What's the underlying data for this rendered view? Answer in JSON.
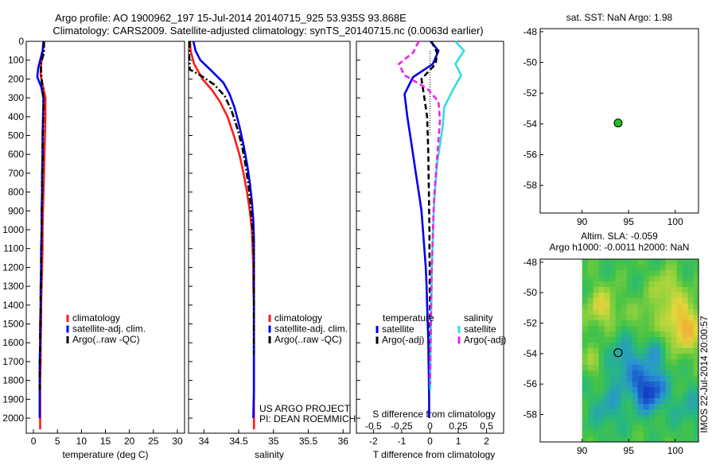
{
  "header": {
    "line1": "Argo profile: AO 1900962_197 15-Jul-2014 20140715_925 53.935S 93.868E",
    "line2": "Climatology: CARS2009. Satellite-adjusted climatology: synTS_20140715.nc (0.0063d earlier)"
  },
  "colors": {
    "climatology": "#ff1a1a",
    "satellite": "#0000ee",
    "argo": "#000000",
    "sal_satellite": "#33dddd",
    "sal_argo": "#ee22ee",
    "marker_fill": "#22bb22"
  },
  "chart_data": [
    {
      "id": "temperature",
      "type": "line",
      "xlabel": "temperature (deg C)",
      "ylabel": "",
      "xlim": [
        -1.5,
        31.5
      ],
      "ylim": [
        2080,
        0
      ],
      "xticks": [
        0,
        5,
        10,
        15,
        20,
        25,
        30
      ],
      "yticks": [
        0,
        100,
        200,
        300,
        400,
        500,
        600,
        700,
        800,
        900,
        1000,
        1100,
        1200,
        1300,
        1400,
        1500,
        1600,
        1700,
        1800,
        1900,
        2000
      ],
      "legend": [
        "climatology",
        "satellite-adj. clim.",
        "Argo(..raw -QC)"
      ],
      "series": [
        {
          "name": "climatology",
          "style": "solid",
          "x": [
            2.1,
            2.0,
            1.6,
            1.5,
            2.0,
            2.5,
            2.5,
            2.4,
            2.3,
            2.2,
            2.1,
            2.0,
            1.9,
            1.9,
            1.8,
            1.7,
            1.6,
            1.6,
            1.5,
            1.5,
            1.4,
            1.4
          ],
          "y": [
            0,
            50,
            120,
            180,
            240,
            300,
            400,
            500,
            600,
            700,
            800,
            900,
            1000,
            1100,
            1200,
            1300,
            1400,
            1500,
            1600,
            1700,
            1800,
            2060
          ]
        },
        {
          "name": "satellite-adj. clim.",
          "style": "solid",
          "x": [
            2.1,
            1.9,
            1.0,
            0.8,
            1.6,
            2.1,
            2.0,
            1.9,
            1.9,
            1.8,
            1.8,
            1.7,
            1.7,
            1.6,
            1.6,
            1.5,
            1.5,
            1.4,
            1.4,
            1.3,
            1.3,
            1.3
          ],
          "y": [
            0,
            50,
            140,
            190,
            240,
            300,
            400,
            500,
            600,
            700,
            800,
            900,
            1000,
            1100,
            1200,
            1300,
            1400,
            1500,
            1600,
            1700,
            1800,
            2000
          ]
        },
        {
          "name": "Argo(..raw -QC)",
          "style": "dashdot",
          "x": [
            2.2,
            2.2,
            1.5,
            1.7,
            2.0,
            2.1,
            2.0,
            1.9,
            1.9,
            1.8,
            1.8,
            1.7,
            1.7,
            1.6,
            1.6,
            1.5,
            1.5,
            1.4,
            1.4,
            1.3,
            1.3
          ],
          "y": [
            0,
            60,
            120,
            200,
            280,
            350,
            450,
            550,
            650,
            750,
            850,
            950,
            1050,
            1150,
            1250,
            1350,
            1450,
            1550,
            1650,
            1750,
            1850
          ]
        }
      ]
    },
    {
      "id": "salinity",
      "type": "line",
      "xlabel": "salinity",
      "xlim": [
        33.78,
        36.1
      ],
      "ylim": [
        2080,
        0
      ],
      "xticks": [
        34,
        34.5,
        35,
        35.5,
        36
      ],
      "legend": [
        "climatology",
        "satellite-adj. clim.",
        "Argo(..raw -QC)"
      ],
      "series": [
        {
          "name": "climatology",
          "style": "solid",
          "x": [
            33.8,
            33.81,
            33.86,
            33.98,
            34.12,
            34.23,
            34.34,
            34.43,
            34.51,
            34.57,
            34.62,
            34.66,
            34.69,
            34.7,
            34.71,
            34.71,
            34.72,
            34.72,
            34.72,
            34.72,
            34.72,
            34.72,
            34.72
          ],
          "y": [
            0,
            50,
            120,
            200,
            260,
            320,
            400,
            500,
            600,
            700,
            800,
            900,
            1000,
            1100,
            1200,
            1300,
            1400,
            1500,
            1600,
            1700,
            1800,
            1900,
            2060
          ]
        },
        {
          "name": "satellite-adj. clim.",
          "style": "solid",
          "x": [
            33.85,
            33.88,
            33.95,
            34.12,
            34.28,
            34.37,
            34.44,
            34.51,
            34.57,
            34.62,
            34.66,
            34.69,
            34.71,
            34.72,
            34.72,
            34.72,
            34.72,
            34.72,
            34.72,
            34.72,
            34.72,
            34.72,
            34.71
          ],
          "y": [
            0,
            50,
            100,
            160,
            220,
            280,
            350,
            450,
            550,
            650,
            750,
            850,
            950,
            1050,
            1150,
            1250,
            1350,
            1450,
            1550,
            1650,
            1750,
            1850,
            2000
          ]
        },
        {
          "name": "Argo(..raw -QC)",
          "style": "dashdot",
          "x": [
            33.8,
            33.79,
            33.8,
            33.95,
            34.15,
            34.3,
            34.4,
            34.48,
            34.55,
            34.6,
            34.64,
            34.67,
            34.69,
            34.71,
            34.72,
            34.72,
            34.72,
            34.72,
            34.72,
            34.72
          ],
          "y": [
            0,
            80,
            150,
            180,
            230,
            290,
            370,
            460,
            560,
            660,
            760,
            860,
            960,
            1060,
            1160,
            1260,
            1360,
            1460,
            1560,
            1660
          ]
        }
      ]
    },
    {
      "id": "difference",
      "type": "line",
      "xlabel_top": "S difference from climatology",
      "xlabel": "T difference from climatology",
      "xlim": [
        -2.6,
        2.6
      ],
      "ylim": [
        2080,
        0
      ],
      "xticks_T": [
        -2,
        -1,
        0,
        1,
        2
      ],
      "xticks_S": [
        -0.5,
        -0.25,
        0,
        0.25,
        0.5
      ],
      "legend_groups": {
        "temperature": {
          "title": "temperature",
          "items": [
            "satellite",
            "Argo(-adj)"
          ]
        },
        "salinity": {
          "title": "salinity",
          "items": [
            "satellite",
            "Argo(-adj)"
          ]
        }
      },
      "series": [
        {
          "name": "temperature satellite",
          "style": "solid",
          "x": [
            0.02,
            0.3,
            0.1,
            -0.6,
            -0.9,
            -0.8,
            -0.7,
            -0.6,
            -0.5,
            -0.4,
            -0.3,
            -0.25,
            -0.2,
            -0.15,
            -0.12,
            -0.1,
            -0.08,
            -0.06,
            -0.05,
            -0.04,
            -0.03,
            -0.03
          ],
          "y": [
            0,
            50,
            120,
            190,
            280,
            400,
            500,
            600,
            700,
            800,
            900,
            1000,
            1100,
            1200,
            1300,
            1400,
            1500,
            1600,
            1700,
            1800,
            1900,
            2000
          ]
        },
        {
          "name": "temperature Argo(-adj)",
          "style": "dashed",
          "x": [
            0.05,
            0.25,
            0.2,
            -0.3,
            -0.2,
            -0.1,
            -0.08,
            -0.06,
            -0.05,
            -0.04,
            -0.03,
            -0.02,
            -0.02,
            -0.01,
            -0.01,
            0.0,
            0.0,
            0.0,
            0.0
          ],
          "y": [
            0,
            60,
            120,
            200,
            300,
            400,
            500,
            600,
            700,
            800,
            900,
            1000,
            1100,
            1200,
            1300,
            1400,
            1500,
            1600,
            1700
          ]
        },
        {
          "name": "salinity satellite",
          "style": "solid",
          "x": [
            0.9,
            1.2,
            0.9,
            1.1,
            0.8,
            0.5,
            0.45,
            0.35,
            0.25,
            0.2,
            0.15,
            0.12,
            0.1,
            0.08,
            0.06,
            0.05,
            0.04,
            0.03,
            0.02,
            0.01,
            0.01
          ],
          "y": [
            0,
            50,
            120,
            180,
            260,
            350,
            450,
            550,
            650,
            750,
            850,
            950,
            1050,
            1150,
            1250,
            1350,
            1450,
            1550,
            1650,
            1750,
            1850
          ]
        },
        {
          "name": "salinity Argo(-adj)",
          "style": "dashed",
          "x": [
            -0.4,
            -0.6,
            -1.1,
            -0.9,
            -0.1,
            0.3,
            0.35,
            0.3,
            0.25,
            0.2,
            0.15,
            0.12,
            0.1,
            0.08,
            0.06,
            0.05,
            0.04,
            0.03,
            0.02,
            0.01,
            0.0
          ],
          "y": [
            0,
            60,
            120,
            180,
            250,
            320,
            420,
            520,
            620,
            720,
            820,
            920,
            1020,
            1120,
            1220,
            1320,
            1420,
            1520,
            1620,
            1720,
            1820
          ]
        }
      ],
      "annotations": [
        "US ARGO PROJECT",
        "PI: DEAN ROEMMICH"
      ]
    },
    {
      "id": "sst_map",
      "type": "scatter",
      "title": "sat. SST: NaN Argo: 1.98",
      "xlim": [
        85.5,
        102.5
      ],
      "ylim": [
        -59.8,
        -47.8
      ],
      "xticks": [
        90,
        95,
        100
      ],
      "yticks": [
        -48,
        -50,
        -52,
        -54,
        -56,
        -58
      ],
      "points": [
        {
          "x": 93.87,
          "y": -53.94
        }
      ]
    },
    {
      "id": "sla_map",
      "type": "heatmap",
      "title_line1": "Altim. SLA: -0.059",
      "title_line2": "Argo h1000: -0.0011 h2000: NaN",
      "side_text": "IMOS 22-Jul-2014 20:00:57",
      "xlim": [
        85.5,
        102.5
      ],
      "ylim": [
        -59.8,
        -47.8
      ],
      "xticks": [
        90,
        95,
        100
      ],
      "yticks": [
        -48,
        -50,
        -52,
        -54,
        -56,
        -58
      ],
      "data_xrange": [
        90,
        103
      ],
      "data_yrange": [
        -59.8,
        -47.8
      ],
      "points": [
        {
          "x": 93.87,
          "y": -53.94
        }
      ]
    }
  ]
}
